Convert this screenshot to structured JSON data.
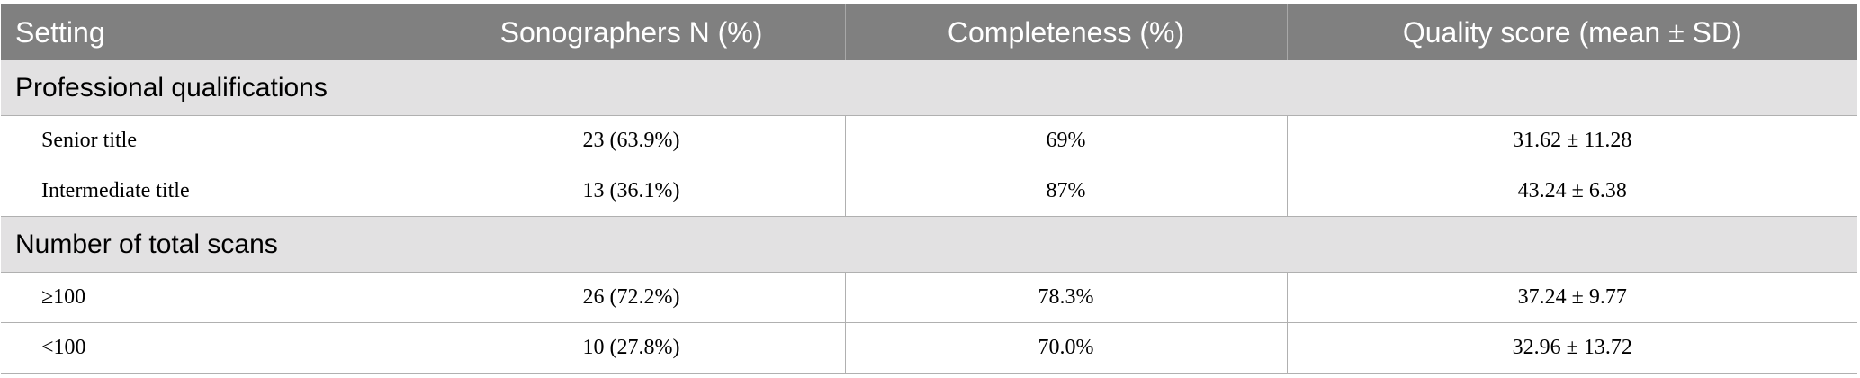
{
  "table": {
    "columns": [
      "Setting",
      "Sonographers N (%)",
      "Completeness (%)",
      "Quality score (mean ± SD)"
    ],
    "sections": [
      {
        "title": "Professional qualifications",
        "rows": [
          [
            "Senior title",
            "23 (63.9%)",
            "69%",
            "31.62 ± 11.28"
          ],
          [
            "Intermediate title",
            "13 (36.1%)",
            "87%",
            "43.24 ± 6.38"
          ]
        ]
      },
      {
        "title": "Number of total scans",
        "rows": [
          [
            "≥100",
            "26 (72.2%)",
            "78.3%",
            "37.24 ± 9.77"
          ],
          [
            "<100",
            "10 (27.8%)",
            "70.0%",
            "32.96 ± 13.72"
          ]
        ]
      }
    ]
  }
}
